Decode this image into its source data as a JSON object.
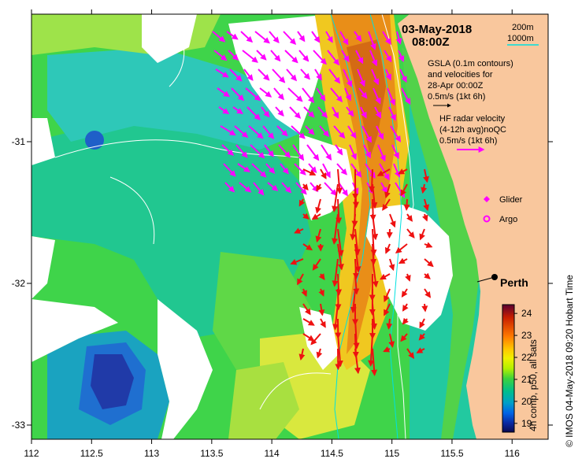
{
  "header": {
    "date": "03-May-2018",
    "time": "08:00Z"
  },
  "contours_legend": [
    {
      "label": "200m",
      "color": "#ffffff"
    },
    {
      "label": "1000m",
      "color": "#00e0e0"
    }
  ],
  "gsla_legend": {
    "lines": [
      "GSLA (0.1m contours)",
      "and velocities for",
      "28-Apr 00:00Z",
      "0.5m/s (1kt 6h)"
    ],
    "arrow_color": "#000000"
  },
  "hf_legend": {
    "lines": [
      "HF radar velocity",
      "(4-12h avg)noQC",
      "0.5m/s (1kt 6h)"
    ],
    "arrow_color": "#ff00ff"
  },
  "markers": [
    {
      "label": "Glider",
      "color": "#ff00ff",
      "icon": "diamond-icon"
    },
    {
      "label": "Argo",
      "color": "#ff00ff",
      "icon": "circle-icon"
    }
  ],
  "city": {
    "label": "Perth",
    "lon": 115.86,
    "lat": -31.95
  },
  "colorbar": {
    "title": "4h comp, p50, all sats",
    "ticks": [
      "24",
      "23",
      "22",
      "21",
      "20",
      "19"
    ],
    "min": 18.6,
    "max": 24.4,
    "colors": [
      "#5a0030",
      "#c81e00",
      "#ff7a00",
      "#ffc800",
      "#f0f000",
      "#b4f000",
      "#3cd23c",
      "#00be8c",
      "#00a0c8",
      "#0064e6",
      "#0a28a0",
      "#0a0a50"
    ]
  },
  "credit": "© IMOS 04-May-2018 09:20 Hobart Time",
  "axes": {
    "x_ticks": [
      "112",
      "112.5",
      "113",
      "113.5",
      "114",
      "114.5",
      "115",
      "115.5",
      "116"
    ],
    "y_ticks": [
      "-31",
      "-32",
      "-33"
    ],
    "lon_range": [
      112,
      116.3
    ],
    "lat_range": [
      -33.1,
      -30.1
    ]
  },
  "colors": {
    "land": "#f9c79d",
    "no_data": "#ffffff"
  }
}
